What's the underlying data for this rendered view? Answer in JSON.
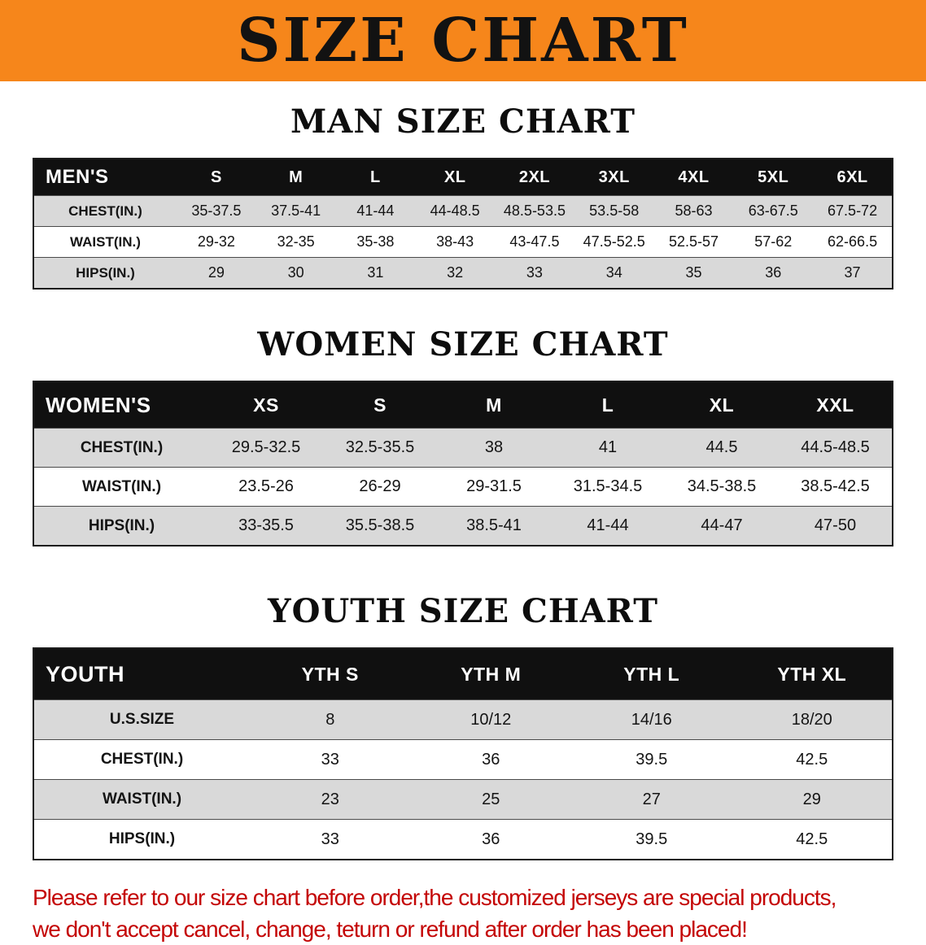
{
  "banner": {
    "title": "SIZE CHART"
  },
  "colors": {
    "banner_orange": "#f6861b",
    "header_black": "#101010",
    "stripe_gray": "#d9d9d9",
    "note_red": "#c40505"
  },
  "tables": {
    "men": {
      "section_title": "MAN SIZE CHART",
      "header": [
        "MEN'S",
        "S",
        "M",
        "L",
        "XL",
        "2XL",
        "3XL",
        "4XL",
        "5XL",
        "6XL"
      ],
      "rows": [
        {
          "label": "CHEST(IN.)",
          "values": [
            "35-37.5",
            "37.5-41",
            "41-44",
            "44-48.5",
            "48.5-53.5",
            "53.5-58",
            "58-63",
            "63-67.5",
            "67.5-72"
          ]
        },
        {
          "label": "WAIST(IN.)",
          "values": [
            "29-32",
            "32-35",
            "35-38",
            "38-43",
            "43-47.5",
            "47.5-52.5",
            "52.5-57",
            "57-62",
            "62-66.5"
          ]
        },
        {
          "label": "HIPS(IN.)",
          "values": [
            "29",
            "30",
            "31",
            "32",
            "33",
            "34",
            "35",
            "36",
            "37"
          ]
        }
      ]
    },
    "women": {
      "section_title": "WOMEN SIZE CHART",
      "header": [
        "WOMEN'S",
        "XS",
        "S",
        "M",
        "L",
        "XL",
        "XXL"
      ],
      "rows": [
        {
          "label": "CHEST(IN.)",
          "values": [
            "29.5-32.5",
            "32.5-35.5",
            "38",
            "41",
            "44.5",
            "44.5-48.5"
          ]
        },
        {
          "label": "WAIST(IN.)",
          "values": [
            "23.5-26",
            "26-29",
            "29-31.5",
            "31.5-34.5",
            "34.5-38.5",
            "38.5-42.5"
          ]
        },
        {
          "label": "HIPS(IN.)",
          "values": [
            "33-35.5",
            "35.5-38.5",
            "38.5-41",
            "41-44",
            "44-47",
            "47-50"
          ]
        }
      ]
    },
    "youth": {
      "section_title": "YOUTH SIZE CHART",
      "header": [
        "YOUTH",
        "YTH S",
        "YTH M",
        "YTH L",
        "YTH XL"
      ],
      "rows": [
        {
          "label": "U.S.SIZE",
          "values": [
            "8",
            "10/12",
            "14/16",
            "18/20"
          ]
        },
        {
          "label": "CHEST(IN.)",
          "values": [
            "33",
            "36",
            "39.5",
            "42.5"
          ]
        },
        {
          "label": "WAIST(IN.)",
          "values": [
            "23",
            "25",
            "27",
            "29"
          ]
        },
        {
          "label": "HIPS(IN.)",
          "values": [
            "33",
            "36",
            "39.5",
            "42.5"
          ]
        }
      ]
    }
  },
  "footer": {
    "line1": "Please refer to our size chart before order,the customized jerseys are special products,",
    "line2": "we don't accept cancel, change, teturn or refund after order has been placed!"
  }
}
